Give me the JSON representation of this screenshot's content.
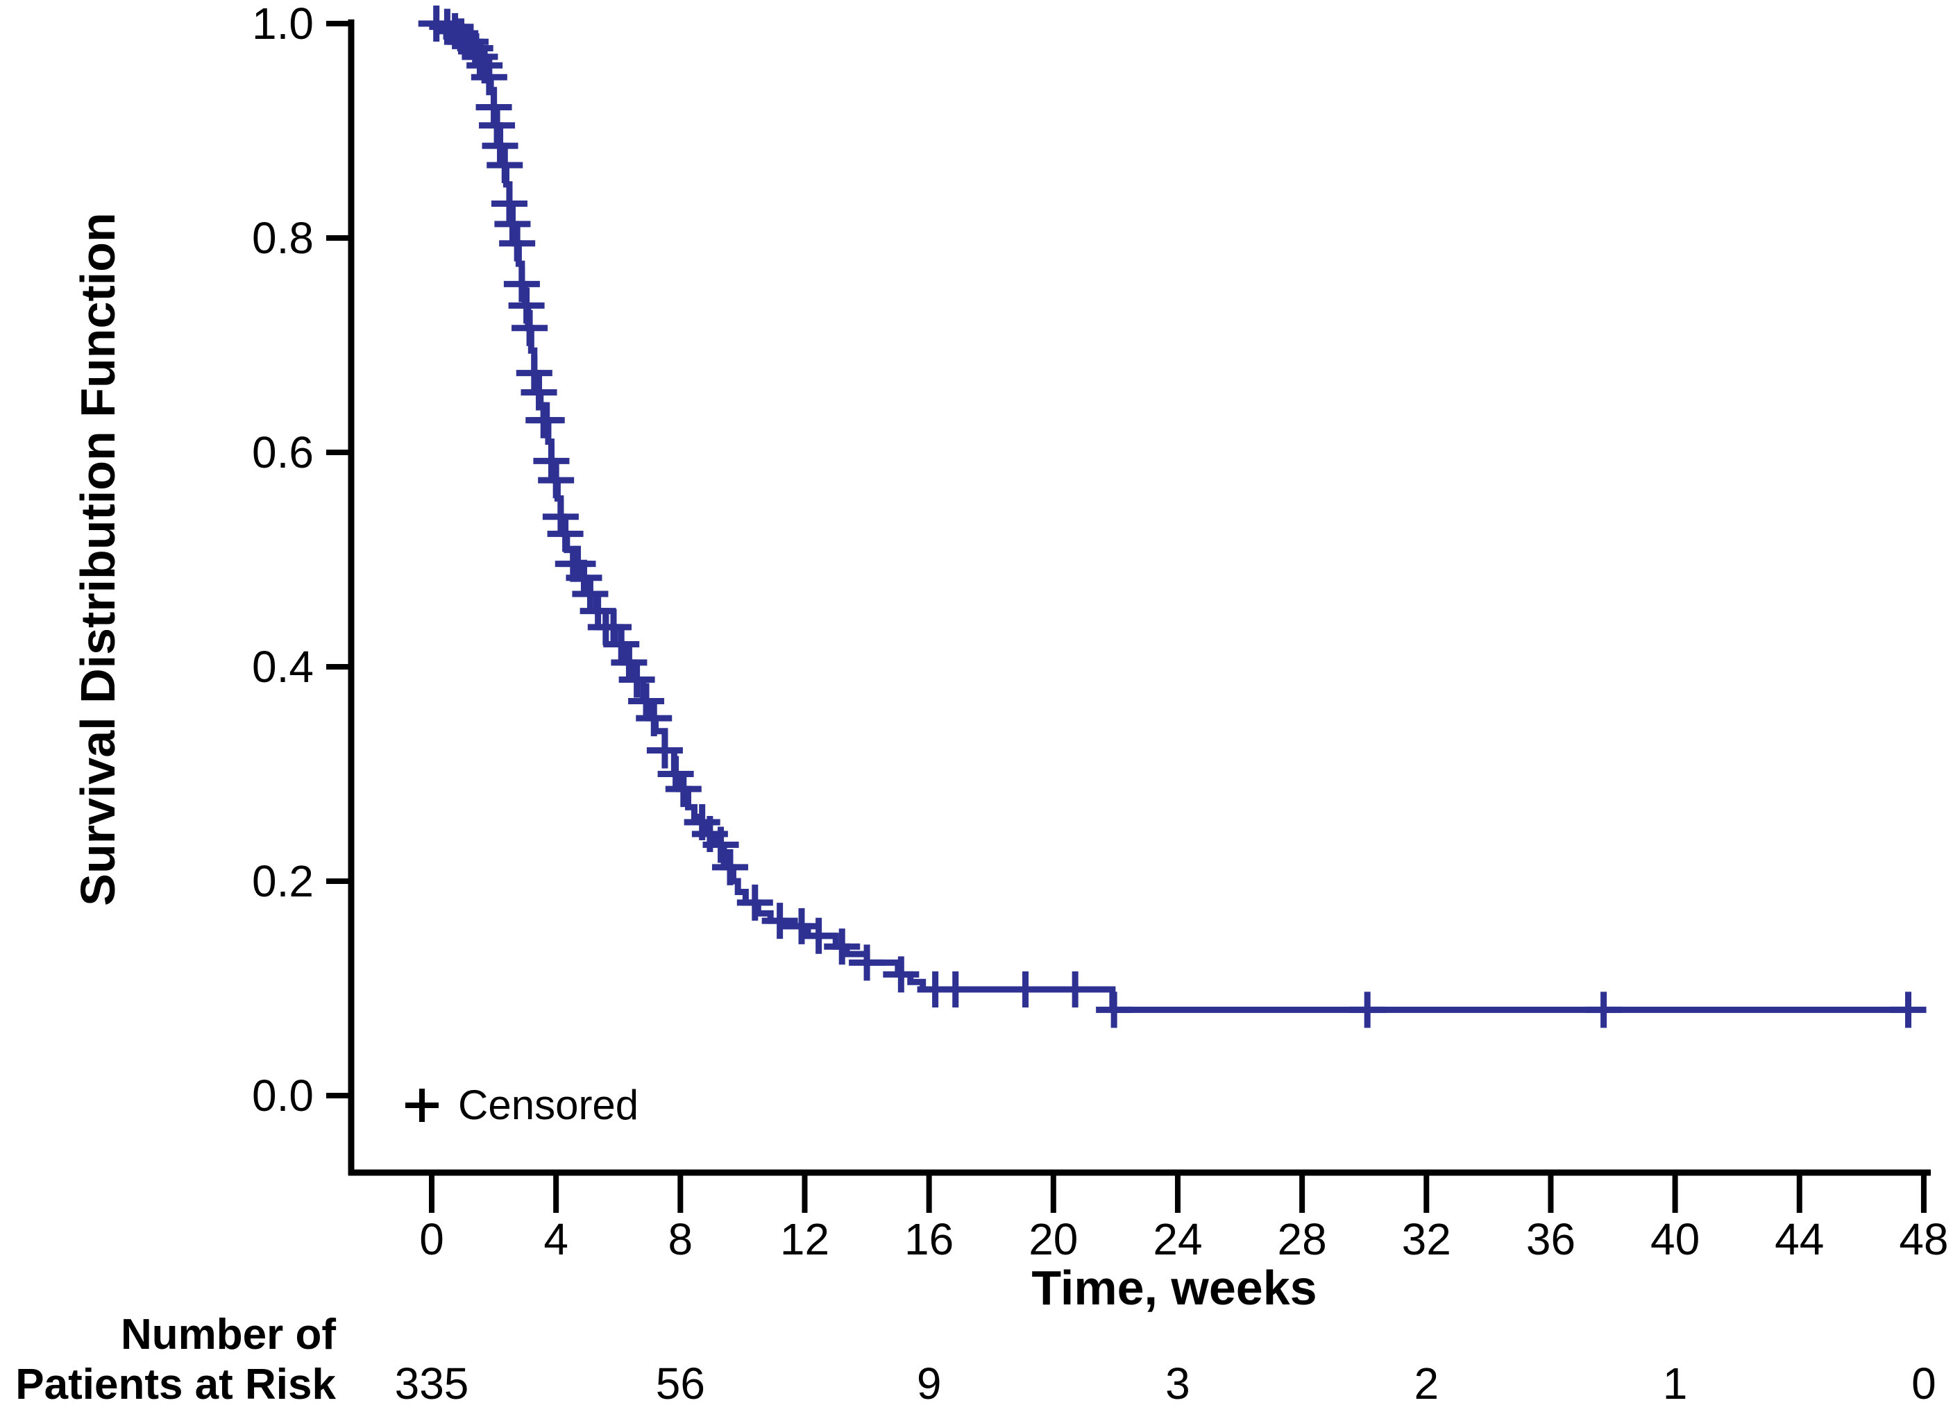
{
  "figure": {
    "y_axis": {
      "title": "Survival Distribution Function",
      "tick_labels": [
        "1.0",
        "0.8",
        "0.6",
        "0.4",
        "0.2",
        "0.0"
      ]
    },
    "x_axis": {
      "title": "Time, weeks",
      "tick_labels": [
        "0",
        "4",
        "8",
        "12",
        "16",
        "20",
        "24",
        "28",
        "32",
        "36",
        "40",
        "44",
        "48"
      ]
    },
    "legend": {
      "marker": "+",
      "label": "Censored"
    },
    "risk_table": {
      "label_line1": "Number of",
      "label_line2": "Patients at Risk",
      "values": [
        "335",
        "56",
        "9",
        "3",
        "2",
        "1",
        "0"
      ]
    }
  },
  "chart_data": {
    "type": "line",
    "subtype": "kaplan-meier-step-curve",
    "title": "",
    "xlabel": "Time, weeks",
    "ylabel": "Survival Distribution Function",
    "xlim": [
      0,
      48
    ],
    "ylim": [
      0.0,
      1.0
    ],
    "x_ticks": [
      0,
      4,
      8,
      12,
      16,
      20,
      24,
      28,
      32,
      36,
      40,
      44,
      48
    ],
    "y_ticks": [
      1.0,
      0.8,
      0.6,
      0.4,
      0.2,
      0.0
    ],
    "grid": false,
    "legend_position": "bottom-left-inside",
    "curve_color": "#2e3192",
    "series": [
      {
        "name": "Censored",
        "step_points": [
          [
            0,
            1.0
          ],
          [
            0.4,
            0.997
          ],
          [
            0.7,
            0.993
          ],
          [
            0.9,
            0.988
          ],
          [
            1.1,
            0.983
          ],
          [
            1.3,
            0.977
          ],
          [
            1.5,
            0.969
          ],
          [
            1.65,
            0.961
          ],
          [
            1.8,
            0.95
          ],
          [
            1.9,
            0.938
          ],
          [
            2.0,
            0.922
          ],
          [
            2.1,
            0.905
          ],
          [
            2.2,
            0.886
          ],
          [
            2.3,
            0.868
          ],
          [
            2.4,
            0.85
          ],
          [
            2.5,
            0.832
          ],
          [
            2.6,
            0.813
          ],
          [
            2.7,
            0.795
          ],
          [
            2.8,
            0.776
          ],
          [
            2.9,
            0.757
          ],
          [
            3.0,
            0.737
          ],
          [
            3.1,
            0.716
          ],
          [
            3.2,
            0.695
          ],
          [
            3.3,
            0.674
          ],
          [
            3.4,
            0.656
          ],
          [
            3.5,
            0.644
          ],
          [
            3.6,
            0.63
          ],
          [
            3.75,
            0.61
          ],
          [
            3.85,
            0.592
          ],
          [
            3.95,
            0.574
          ],
          [
            4.05,
            0.557
          ],
          [
            4.15,
            0.54
          ],
          [
            4.25,
            0.524
          ],
          [
            4.35,
            0.509
          ],
          [
            4.55,
            0.496
          ],
          [
            4.75,
            0.483
          ],
          [
            5.0,
            0.468
          ],
          [
            5.3,
            0.452
          ],
          [
            5.6,
            0.437
          ],
          [
            5.9,
            0.421
          ],
          [
            6.2,
            0.404
          ],
          [
            6.5,
            0.388
          ],
          [
            6.8,
            0.368
          ],
          [
            7.0,
            0.352
          ],
          [
            7.2,
            0.34
          ],
          [
            7.5,
            0.322
          ],
          [
            7.8,
            0.3
          ],
          [
            7.95,
            0.286
          ],
          [
            8.25,
            0.269
          ],
          [
            8.45,
            0.26
          ],
          [
            8.6,
            0.255
          ],
          [
            8.8,
            0.244
          ],
          [
            9.1,
            0.234
          ],
          [
            9.4,
            0.213
          ],
          [
            9.7,
            0.2
          ],
          [
            9.85,
            0.19
          ],
          [
            10.1,
            0.18
          ],
          [
            10.5,
            0.17
          ],
          [
            10.9,
            0.163
          ],
          [
            11.3,
            0.158
          ],
          [
            12.1,
            0.149
          ],
          [
            13.0,
            0.139
          ],
          [
            13.35,
            0.132
          ],
          [
            14.0,
            0.124
          ],
          [
            15.0,
            0.113
          ],
          [
            15.4,
            0.106
          ],
          [
            15.8,
            0.099
          ],
          [
            21.9,
            0.08
          ]
        ],
        "end_time": 47.6,
        "censor_times": [
          0.15,
          0.5,
          0.75,
          0.95,
          1.1,
          1.25,
          1.4,
          1.55,
          1.7,
          1.85,
          2.0,
          2.1,
          2.2,
          2.35,
          2.5,
          2.6,
          2.75,
          2.9,
          3.05,
          3.15,
          3.3,
          3.45,
          3.6,
          3.7,
          3.85,
          4.0,
          4.15,
          4.3,
          4.55,
          4.7,
          4.9,
          5.1,
          5.35,
          5.6,
          5.85,
          6.1,
          6.35,
          6.6,
          6.9,
          7.15,
          7.5,
          7.85,
          8.1,
          8.7,
          8.95,
          9.3,
          9.6,
          10.4,
          11.2,
          11.9,
          12.45,
          13.2,
          14.0,
          15.1,
          16.2,
          16.85,
          19.1,
          20.7,
          21.95,
          30.1,
          37.7,
          47.5
        ]
      }
    ],
    "risk_table": {
      "times": [
        0,
        8,
        16,
        24,
        32,
        40,
        48
      ],
      "at_risk": [
        335,
        56,
        9,
        3,
        2,
        1,
        0
      ]
    }
  }
}
